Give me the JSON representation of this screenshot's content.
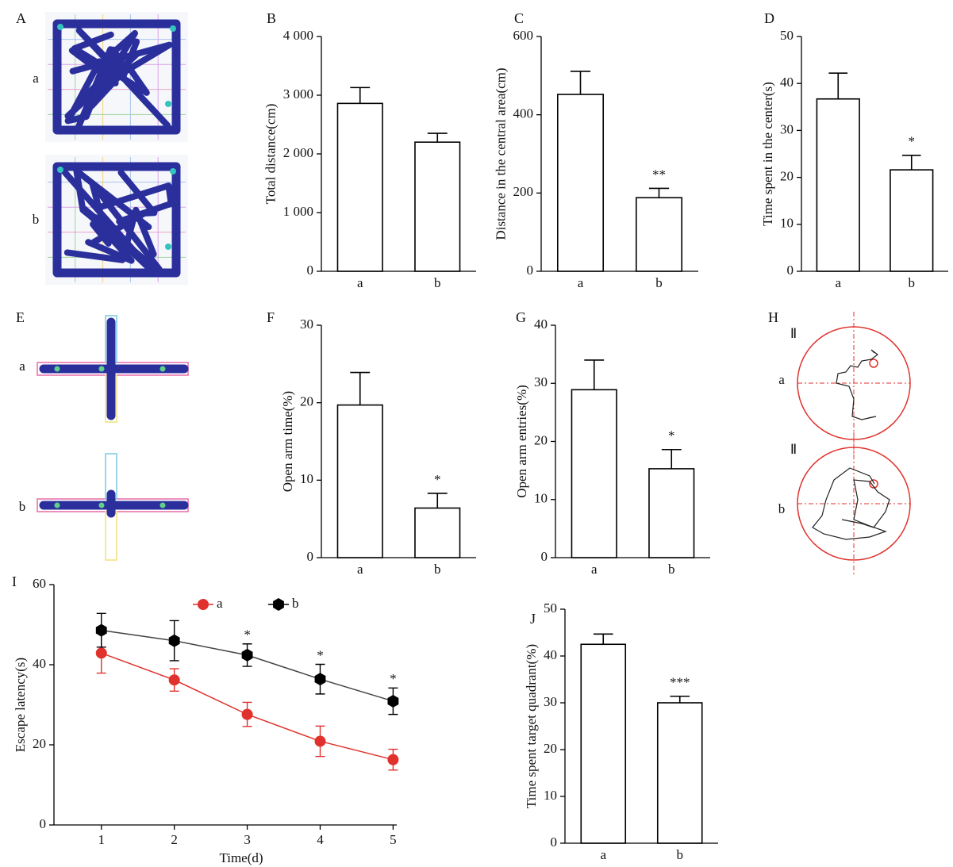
{
  "images": [
    {
      "panel": "A",
      "labels": [
        "a",
        "b"
      ]
    },
    {
      "panel": "E",
      "labels": [
        "a",
        "b"
      ]
    },
    {
      "panel": "H",
      "labels": [
        "a",
        "b"
      ],
      "quadrant_labels": [
        "Ⅱ",
        "Ⅱ"
      ]
    }
  ],
  "chart_data": [
    {
      "type": "bar",
      "panel": "B",
      "ylabel": "Total distance(cm)",
      "categories": [
        "a",
        "b"
      ],
      "values": [
        2860,
        2200
      ],
      "errors": [
        270,
        150
      ],
      "color": "#ffffff",
      "ylim": [
        0,
        4000
      ],
      "yticks": [
        0,
        {
          "value": 1000,
          "label": "1 000"
        },
        {
          "value": 2000,
          "label": "2 000"
        },
        {
          "value": 3000,
          "label": "3 000"
        },
        {
          "value": 4000,
          "label": "4 000"
        }
      ]
    },
    {
      "type": "bar",
      "panel": "C",
      "ylabel": "Distance in the central area(cm)",
      "categories": [
        "a",
        "b"
      ],
      "values": [
        452,
        188
      ],
      "errors": [
        59,
        24
      ],
      "annotations": [
        null,
        "**"
      ],
      "color": "#ffffff",
      "ylim": [
        0,
        600
      ],
      "yticks": [
        0,
        200,
        400,
        600
      ]
    },
    {
      "type": "bar",
      "panel": "D",
      "ylabel": "Time spent in the center(s)",
      "categories": [
        "a",
        "b"
      ],
      "values": [
        36.7,
        21.6
      ],
      "errors": [
        5.5,
        3.1
      ],
      "annotations": [
        null,
        "*"
      ],
      "color": "#ffffff",
      "ylim": [
        0,
        50
      ],
      "yticks": [
        0,
        10,
        20,
        30,
        40,
        50
      ]
    },
    {
      "type": "bar",
      "panel": "F",
      "ylabel": "Open arm time(%)",
      "categories": [
        "a",
        "b"
      ],
      "values": [
        19.7,
        6.4
      ],
      "errors": [
        4.2,
        1.9
      ],
      "annotations": [
        null,
        "*"
      ],
      "color": "#ffffff",
      "ylim": [
        0,
        30
      ],
      "yticks": [
        0,
        10,
        20,
        30
      ]
    },
    {
      "type": "bar",
      "panel": "G",
      "ylabel": "Open arm entries(%)",
      "categories": [
        "a",
        "b"
      ],
      "values": [
        28.9,
        15.3
      ],
      "errors": [
        5.1,
        3.3
      ],
      "annotations": [
        null,
        "*"
      ],
      "color": "#ffffff",
      "ylim": [
        0,
        40
      ],
      "yticks": [
        0,
        10,
        20,
        30,
        40
      ]
    },
    {
      "type": "line",
      "panel": "I",
      "xlabel": "Time(d)",
      "ylabel": "Escape latency(s)",
      "legend": "top",
      "x": [
        1,
        2,
        3,
        4,
        5
      ],
      "xlim": [
        0.35,
        5.05
      ],
      "xticks": [
        1,
        2,
        3,
        4,
        5
      ],
      "ylim": [
        0,
        60
      ],
      "yticks": [
        0,
        20,
        40,
        60
      ],
      "annotations": [
        null,
        null,
        "*",
        "*",
        "*"
      ],
      "series": [
        {
          "name": "a",
          "color": "#e0312c",
          "marker": "circle",
          "values": [
            42.9,
            36.2,
            27.6,
            20.9,
            16.3
          ],
          "errors": [
            5,
            2.8,
            3,
            3.8,
            2.6
          ]
        },
        {
          "name": "b",
          "color": "#000000",
          "marker": "hexagon",
          "values": [
            48.6,
            46,
            42.4,
            36.4,
            30.9
          ],
          "errors": [
            4.2,
            5,
            2.8,
            3.7,
            3.3
          ]
        }
      ]
    },
    {
      "type": "bar",
      "panel": "J",
      "ylabel": "Time spent target quadrant(%)",
      "categories": [
        "a",
        "b"
      ],
      "values": [
        42.5,
        30
      ],
      "errors": [
        2.2,
        1.4
      ],
      "annotations": [
        null,
        "***"
      ],
      "color": "#ffffff",
      "ylim": [
        0,
        50
      ],
      "yticks": [
        0,
        10,
        20,
        30,
        40,
        50
      ]
    }
  ]
}
